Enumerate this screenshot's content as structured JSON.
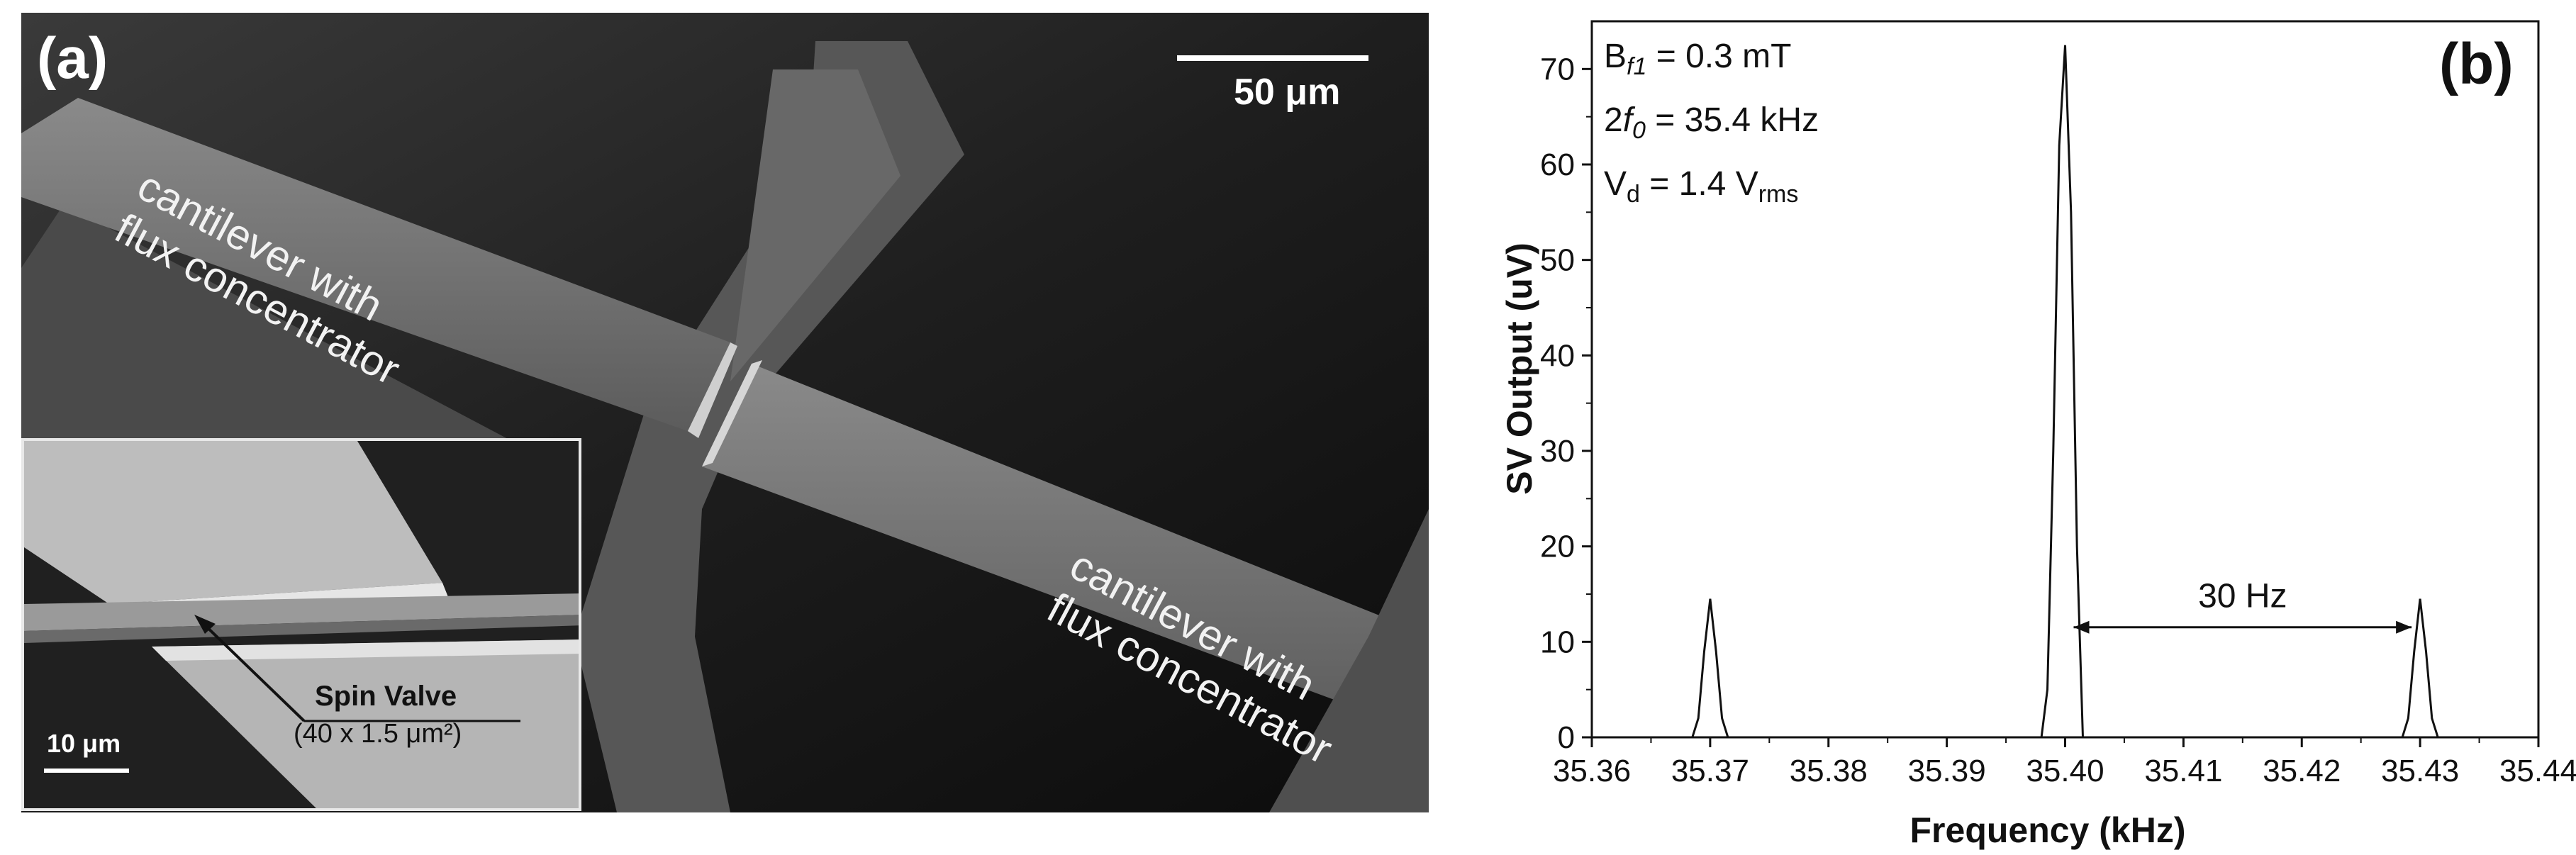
{
  "panel_a": {
    "letter": "(a)",
    "scalebar_main": "50 μm",
    "cantilever_label_top": [
      "cantilever with",
      "flux concentrator"
    ],
    "cantilever_label_bottom": [
      "cantilever with",
      "flux concentrator"
    ],
    "inset": {
      "spin_valve_label": "Spin Valve",
      "spin_valve_size": "(40 x 1.5 μm²)",
      "scalebar": "10 μm"
    }
  },
  "panel_b": {
    "letter": "(b)",
    "annotations": [
      {
        "pre": "B",
        "sub": "f1",
        "post": " = 0.3 mT"
      },
      {
        "pre": "2",
        "italic": "f",
        "sub": "0",
        "post": " = 35.4 kHz"
      },
      {
        "pre": "V",
        "sub": "d",
        "post": " = 1.4 V",
        "sub2": "rms"
      }
    ],
    "spacing_label": "30 Hz"
  },
  "chart_data": {
    "type": "line",
    "xlabel": "Frequency (kHz)",
    "ylabel": "SV Output (uV)",
    "xlim": [
      35.36,
      35.44
    ],
    "ylim": [
      0,
      75
    ],
    "x_ticks": [
      "35.36",
      "35.37",
      "35.38",
      "35.39",
      "35.40",
      "35.41",
      "35.42",
      "35.43",
      "35.44"
    ],
    "y_ticks": [
      "0",
      "10",
      "20",
      "30",
      "40",
      "50",
      "60",
      "70"
    ],
    "grid": false,
    "series": [
      {
        "x": [
          35.36,
          35.3685,
          35.369,
          35.3695,
          35.37,
          35.3705,
          35.371,
          35.3715,
          35.398,
          35.3985,
          35.399,
          35.3995,
          35.4,
          35.4005,
          35.401,
          35.4015,
          35.4285,
          35.429,
          35.4295,
          35.43,
          35.4305,
          35.431,
          35.4315,
          35.44
        ],
        "y": [
          0,
          0,
          2,
          9,
          14.5,
          9,
          2,
          0,
          0,
          5,
          30,
          62,
          72.5,
          55,
          20,
          0,
          0,
          2,
          9,
          14.5,
          9,
          2,
          0,
          0
        ]
      }
    ],
    "annotation_arrow": {
      "from": 35.4,
      "to": 35.43,
      "y": 14.5,
      "label": "30 Hz"
    }
  }
}
